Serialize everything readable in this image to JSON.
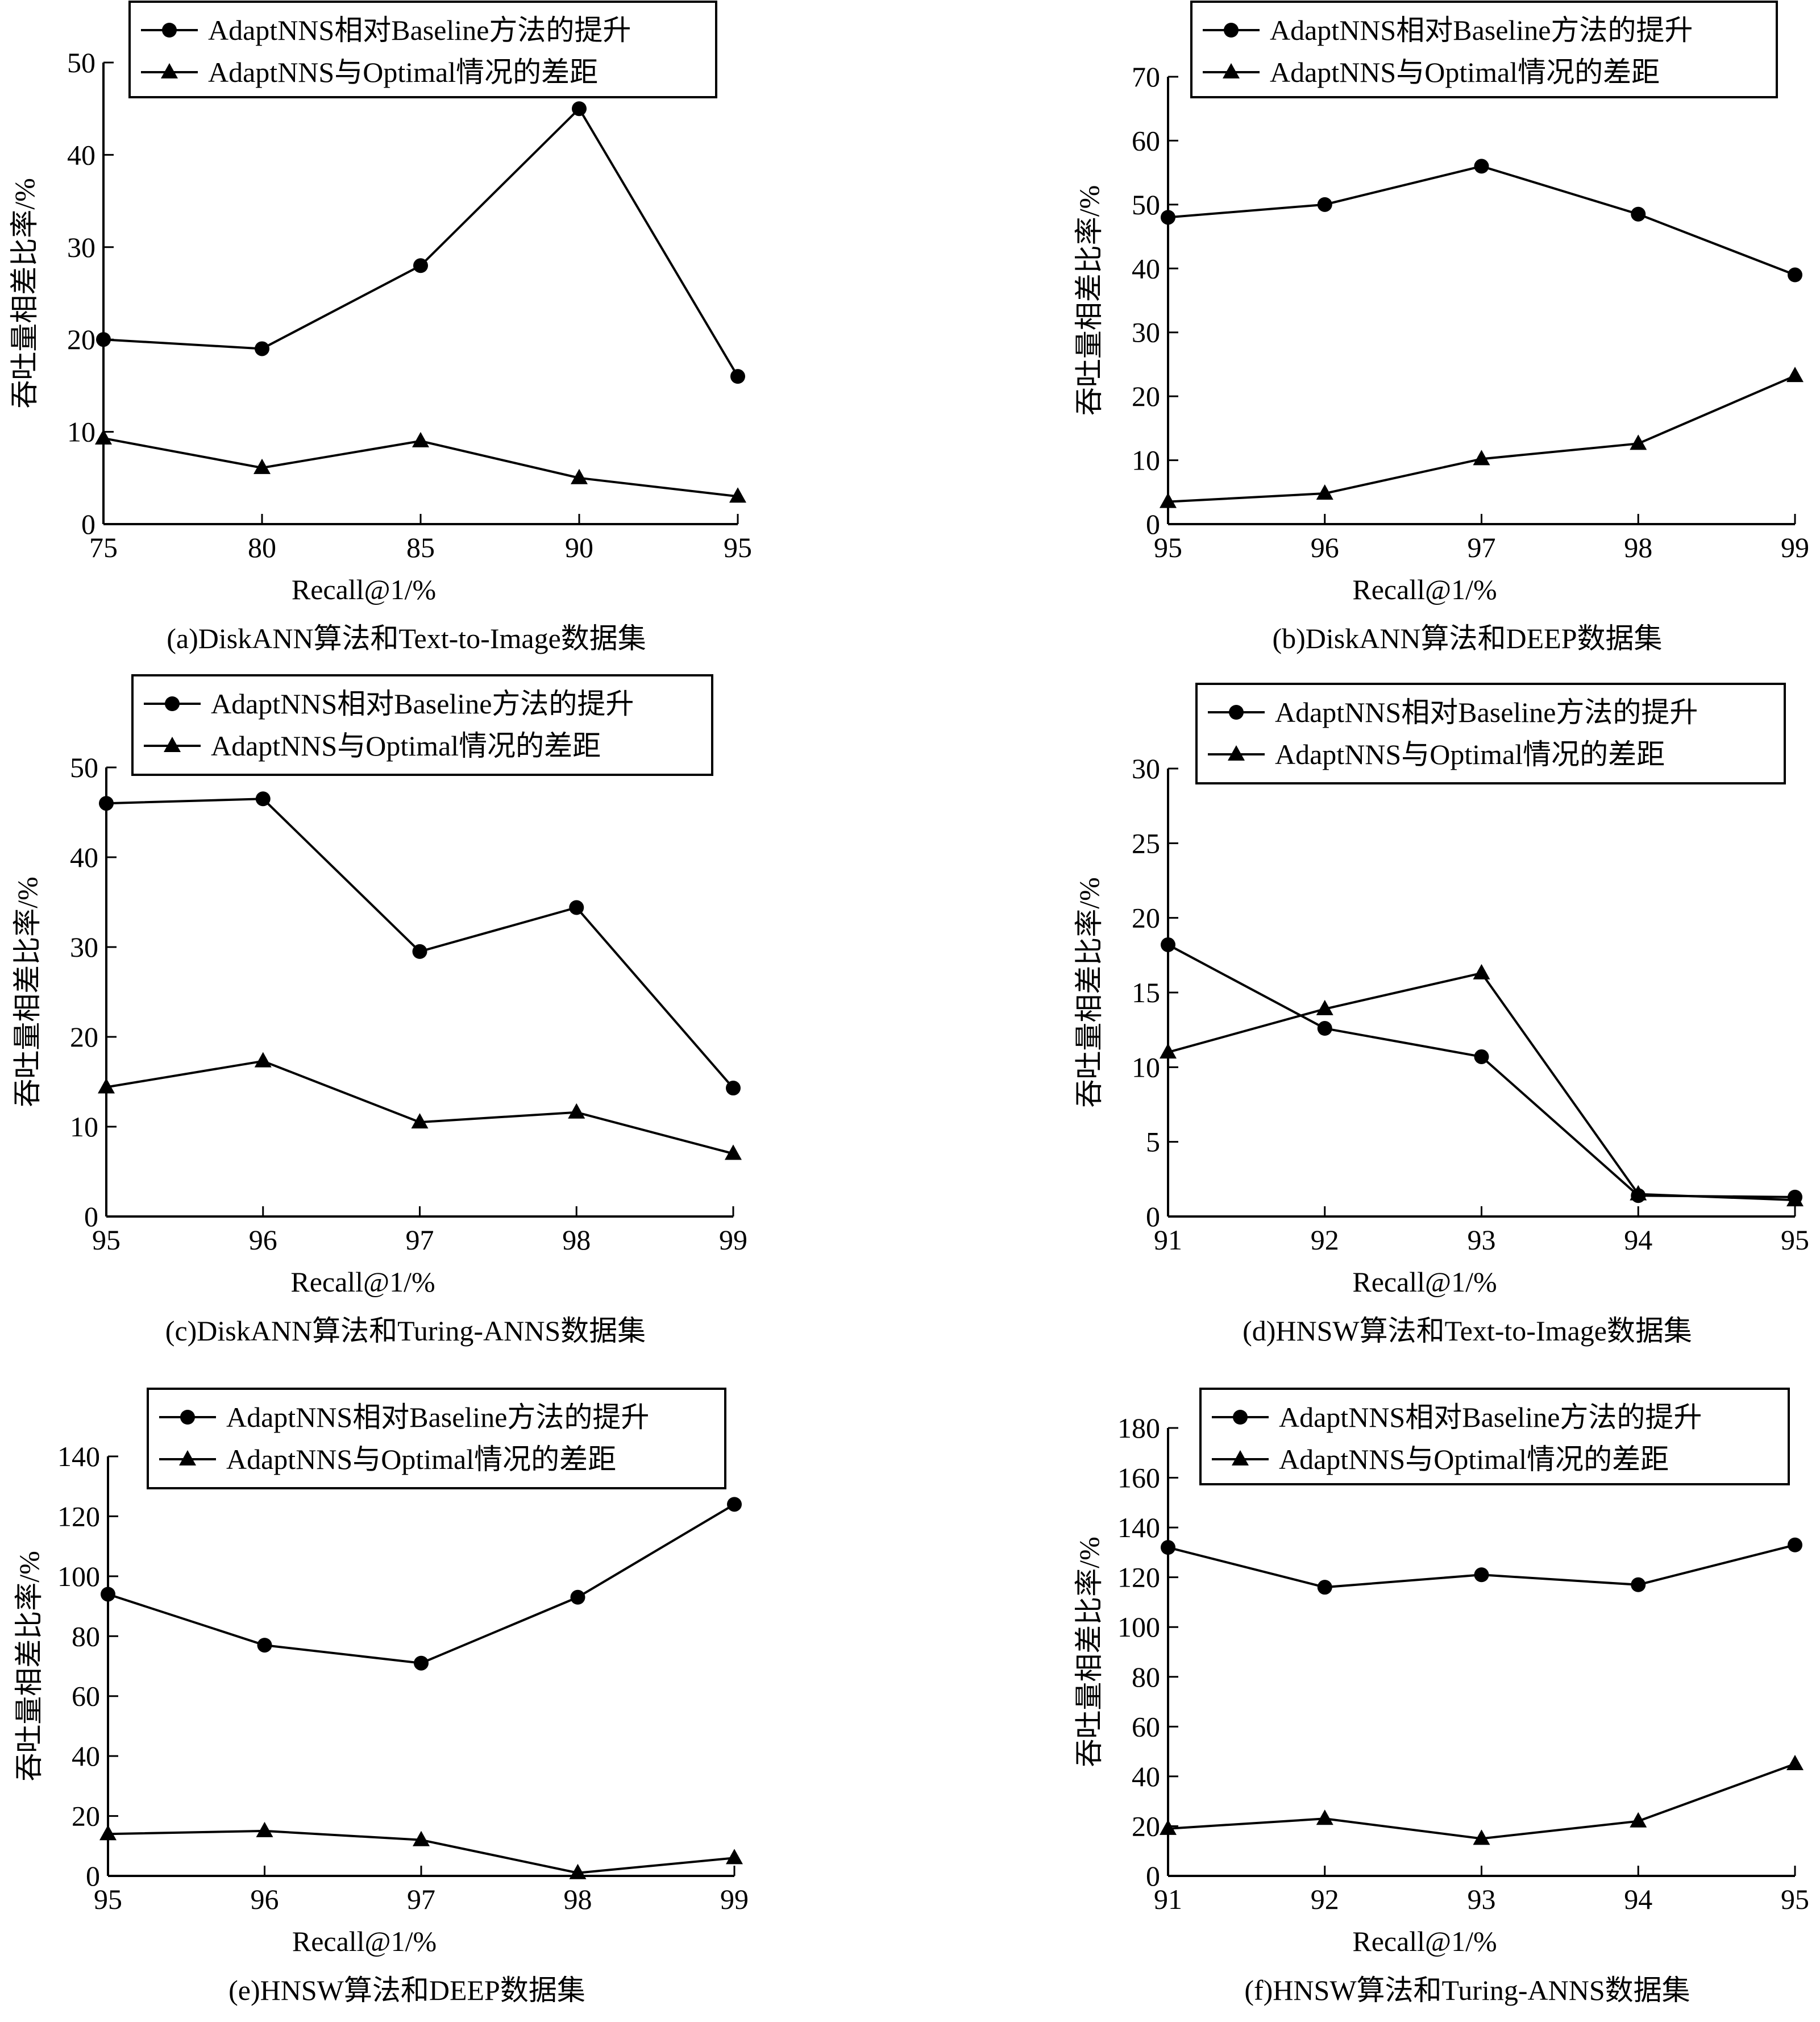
{
  "figure": {
    "legend_labels": [
      "AdaptNNS相对Baseline方法的提升",
      "AdaptNNS与Optimal情况的差距"
    ],
    "legend_markers": [
      "circle",
      "triangle"
    ],
    "colors": {
      "line": "#000000",
      "background": "#ffffff"
    }
  },
  "chart_data": [
    {
      "id": "a",
      "type": "line",
      "caption": "(a)DiskANN算法和Text-to-Image数据集",
      "xlabel": "Recall@1/%",
      "ylabel": "吞吐量相差比率/%",
      "x": [
        75,
        80,
        85,
        90,
        95
      ],
      "xlim": [
        75,
        95
      ],
      "ylim": [
        0,
        50
      ],
      "yticks": [
        0,
        10,
        20,
        30,
        40,
        50
      ],
      "series": [
        {
          "name": "AdaptNNS相对Baseline方法的提升",
          "marker": "circle",
          "values": [
            20,
            19,
            28,
            45,
            16
          ]
        },
        {
          "name": "AdaptNNS与Optimal情况的差距",
          "marker": "triangle",
          "values": [
            9.3,
            6.1,
            9,
            5,
            3
          ]
        }
      ],
      "legend": "top"
    },
    {
      "id": "b",
      "type": "line",
      "caption": "(b)DiskANN算法和DEEP数据集",
      "xlabel": "Recall@1/%",
      "ylabel": "吞吐量相差比率/%",
      "x": [
        95,
        96,
        97,
        98,
        99
      ],
      "xlim": [
        95,
        99
      ],
      "ylim": [
        0,
        70
      ],
      "yticks": [
        0,
        10,
        20,
        30,
        40,
        50,
        60,
        70
      ],
      "series": [
        {
          "name": "AdaptNNS相对Baseline方法的提升",
          "marker": "circle",
          "values": [
            48,
            50,
            56,
            48.5,
            39
          ]
        },
        {
          "name": "AdaptNNS与Optimal情况的差距",
          "marker": "triangle",
          "values": [
            3.5,
            4.8,
            10.2,
            12.6,
            23.2
          ]
        }
      ],
      "legend": "top"
    },
    {
      "id": "c",
      "type": "line",
      "caption": "(c)DiskANN算法和Turing-ANNS数据集",
      "xlabel": "Recall@1/%",
      "ylabel": "吞吐量相差比率/%",
      "x": [
        95,
        96,
        97,
        98,
        99
      ],
      "xlim": [
        95,
        99
      ],
      "ylim": [
        0,
        50
      ],
      "yticks": [
        0,
        10,
        20,
        30,
        40,
        50
      ],
      "series": [
        {
          "name": "AdaptNNS相对Baseline方法的提升",
          "marker": "circle",
          "values": [
            46,
            46.5,
            29.5,
            34.4,
            14.3
          ]
        },
        {
          "name": "AdaptNNS与Optimal情况的差距",
          "marker": "triangle",
          "values": [
            14.4,
            17.3,
            10.5,
            11.6,
            7
          ]
        }
      ],
      "legend": "top"
    },
    {
      "id": "d",
      "type": "line",
      "caption": "(d)HNSW算法和Text-to-Image数据集",
      "xlabel": "Recall@1/%",
      "ylabel": "吞吐量相差比率/%",
      "x": [
        91,
        92,
        93,
        94,
        95
      ],
      "xlim": [
        91,
        95
      ],
      "ylim": [
        0,
        30
      ],
      "yticks": [
        0,
        5,
        10,
        15,
        20,
        25,
        30
      ],
      "series": [
        {
          "name": "AdaptNNS相对Baseline方法的提升",
          "marker": "circle",
          "values": [
            18.2,
            12.6,
            10.7,
            1.4,
            1.3
          ]
        },
        {
          "name": "AdaptNNS与Optimal情况的差距",
          "marker": "triangle",
          "values": [
            11,
            13.9,
            16.3,
            1.5,
            1.1
          ]
        }
      ],
      "legend": "top"
    },
    {
      "id": "e",
      "type": "line",
      "caption": "(e)HNSW算法和DEEP数据集",
      "xlabel": "Recall@1/%",
      "ylabel": "吞吐量相差比率/%",
      "x": [
        95,
        96,
        97,
        98,
        99
      ],
      "xlim": [
        95,
        99
      ],
      "ylim": [
        0,
        140
      ],
      "yticks": [
        0,
        20,
        40,
        60,
        80,
        100,
        120,
        140
      ],
      "series": [
        {
          "name": "AdaptNNS相对Baseline方法的提升",
          "marker": "circle",
          "values": [
            94,
            77,
            71,
            93,
            124
          ]
        },
        {
          "name": "AdaptNNS与Optimal情况的差距",
          "marker": "triangle",
          "values": [
            14,
            15,
            12,
            1,
            6
          ]
        }
      ],
      "legend": "top"
    },
    {
      "id": "f",
      "type": "line",
      "caption": "(f)HNSW算法和Turing-ANNS数据集",
      "xlabel": "Recall@1/%",
      "ylabel": "吞吐量相差比率/%",
      "x": [
        91,
        92,
        93,
        94,
        95
      ],
      "xlim": [
        91,
        95
      ],
      "ylim": [
        0,
        180
      ],
      "yticks": [
        0,
        20,
        40,
        60,
        80,
        100,
        120,
        140,
        160,
        180
      ],
      "series": [
        {
          "name": "AdaptNNS相对Baseline方法的提升",
          "marker": "circle",
          "values": [
            132,
            116,
            121,
            117,
            133
          ]
        },
        {
          "name": "AdaptNNS与Optimal情况的差距",
          "marker": "triangle",
          "values": [
            19,
            23,
            15,
            22,
            45
          ]
        }
      ],
      "legend": "top"
    }
  ]
}
